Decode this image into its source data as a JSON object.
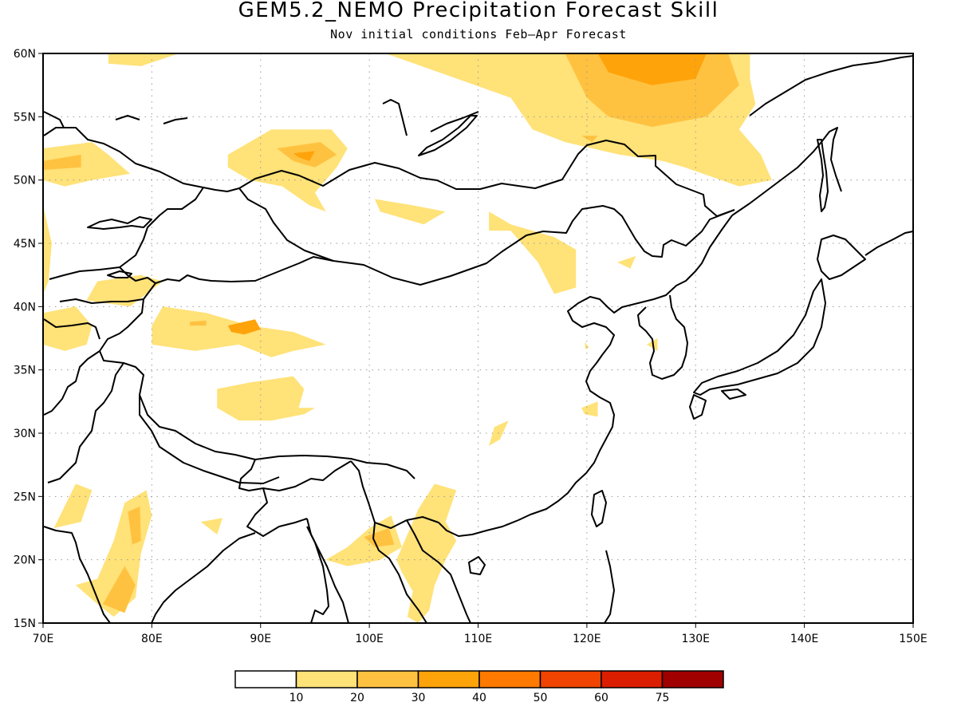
{
  "map": {
    "title": "GEM5.2_NEMO Precipitation Forecast Skill",
    "subtitle": "Nov initial conditions  Feb–Apr Forecast",
    "lon_range": [
      70,
      150
    ],
    "lat_range": [
      15,
      60
    ],
    "lon_ticks": [
      "70E",
      "80E",
      "90E",
      "100E",
      "110E",
      "120E",
      "130E",
      "140E",
      "150E"
    ],
    "lat_ticks": [
      "15N",
      "20N",
      "25N",
      "30N",
      "35N",
      "40N",
      "45N",
      "50N",
      "55N",
      "60N"
    ],
    "grid": "dotted"
  },
  "colorbar": {
    "colors": [
      "#ffffff",
      "#ffe278",
      "#ffc240",
      "#ffa30a",
      "#ff7a00",
      "#f04400",
      "#dc1e00",
      "#a00000"
    ],
    "labels": [
      "10",
      "20",
      "30",
      "40",
      "50",
      "60",
      "75"
    ]
  },
  "skill_regions": [
    {
      "level": 1,
      "points": [
        [
          76,
          60
        ],
        [
          82.5,
          60
        ],
        [
          79,
          59
        ],
        [
          76,
          59.2
        ]
      ]
    },
    {
      "level": 1,
      "points": [
        [
          101.5,
          60
        ],
        [
          135,
          60
        ],
        [
          135,
          58
        ],
        [
          135.5,
          56
        ],
        [
          134,
          54
        ],
        [
          136,
          52
        ],
        [
          137,
          50
        ],
        [
          134,
          49.5
        ],
        [
          129,
          51
        ],
        [
          127,
          51.5
        ],
        [
          123,
          52
        ],
        [
          118,
          53
        ],
        [
          115,
          54
        ],
        [
          113,
          56.5
        ]
      ]
    },
    {
      "level": 2,
      "points": [
        [
          118,
          60
        ],
        [
          133,
          60
        ],
        [
          134,
          57.5
        ],
        [
          131,
          55
        ],
        [
          126,
          54.2
        ],
        [
          122,
          55
        ],
        [
          120,
          56.5
        ]
      ]
    },
    {
      "level": 3,
      "points": [
        [
          121,
          60
        ],
        [
          131,
          60
        ],
        [
          130,
          58
        ],
        [
          126,
          57.5
        ],
        [
          122,
          58.5
        ]
      ]
    },
    {
      "level": 2,
      "points": [
        [
          119.5,
          53.5
        ],
        [
          121,
          53.5
        ],
        [
          120.5,
          53
        ]
      ]
    },
    {
      "level": 1,
      "points": [
        [
          70,
          52.5
        ],
        [
          74.5,
          53
        ],
        [
          76,
          52
        ],
        [
          78,
          50.5
        ],
        [
          74.5,
          50
        ],
        [
          72,
          49.5
        ],
        [
          70,
          50
        ]
      ]
    },
    {
      "level": 2,
      "points": [
        [
          70,
          51.5
        ],
        [
          73.5,
          52
        ],
        [
          73.5,
          51
        ],
        [
          70,
          50.8
        ]
      ]
    },
    {
      "level": 1,
      "points": [
        [
          87,
          52
        ],
        [
          91,
          54
        ],
        [
          96.5,
          54
        ],
        [
          98,
          52.5
        ],
        [
          97,
          51
        ],
        [
          95,
          49
        ],
        [
          96,
          47.5
        ],
        [
          94.5,
          48
        ],
        [
          92,
          49.5
        ],
        [
          89,
          50
        ],
        [
          87,
          51
        ]
      ]
    },
    {
      "level": 2,
      "points": [
        [
          91.5,
          52.5
        ],
        [
          95.5,
          53
        ],
        [
          97,
          52
        ],
        [
          95,
          51
        ],
        [
          93,
          51.5
        ]
      ]
    },
    {
      "level": 3,
      "points": [
        [
          93,
          52.1
        ],
        [
          95,
          52.3
        ],
        [
          94.5,
          51.5
        ],
        [
          93.5,
          51.8
        ]
      ]
    },
    {
      "level": 1,
      "points": [
        [
          100.5,
          48.5
        ],
        [
          104,
          48
        ],
        [
          107,
          47.5
        ],
        [
          105,
          46.5
        ],
        [
          103,
          47
        ],
        [
          101,
          47.5
        ]
      ]
    },
    {
      "level": 1,
      "points": [
        [
          111,
          47.5
        ],
        [
          113,
          46.5
        ],
        [
          117,
          45.5
        ],
        [
          119,
          44.5
        ],
        [
          119,
          41.5
        ],
        [
          117,
          41
        ],
        [
          115.5,
          43.5
        ],
        [
          113,
          46
        ],
        [
          111,
          46
        ]
      ]
    },
    {
      "level": 1,
      "points": [
        [
          70,
          48
        ],
        [
          70.8,
          45
        ],
        [
          70.5,
          42
        ],
        [
          70,
          41
        ]
      ]
    },
    {
      "level": 1,
      "points": [
        [
          75,
          42
        ],
        [
          79,
          42.5
        ],
        [
          81,
          42
        ],
        [
          78,
          40
        ],
        [
          74,
          40.5
        ]
      ]
    },
    {
      "level": 1,
      "points": [
        [
          80,
          38.5
        ],
        [
          81,
          40
        ],
        [
          85,
          39.5
        ],
        [
          89,
          38.5
        ],
        [
          93,
          38
        ],
        [
          96,
          37
        ],
        [
          93,
          36.5
        ],
        [
          91,
          36
        ],
        [
          88,
          37
        ],
        [
          84,
          36.5
        ],
        [
          80,
          37
        ]
      ]
    },
    {
      "level": 2,
      "points": [
        [
          83.5,
          38.8
        ],
        [
          85,
          38.9
        ],
        [
          85,
          38.5
        ],
        [
          83.5,
          38.5
        ]
      ]
    },
    {
      "level": 3,
      "points": [
        [
          87,
          38.5
        ],
        [
          89.5,
          39
        ],
        [
          90,
          38.2
        ],
        [
          88.5,
          37.8
        ],
        [
          87.3,
          38
        ]
      ]
    },
    {
      "level": 1,
      "points": [
        [
          70,
          39.5
        ],
        [
          73,
          40
        ],
        [
          74.5,
          38.5
        ],
        [
          74,
          37
        ],
        [
          72,
          36.5
        ],
        [
          70,
          37
        ]
      ]
    },
    {
      "level": 1,
      "points": [
        [
          86,
          33.5
        ],
        [
          89,
          34
        ],
        [
          93,
          34.5
        ],
        [
          94,
          33.5
        ],
        [
          93.5,
          32
        ],
        [
          95,
          32
        ],
        [
          94,
          31.5
        ],
        [
          91,
          31
        ],
        [
          88,
          31
        ],
        [
          86,
          32
        ]
      ]
    },
    {
      "level": 1,
      "points": [
        [
          102.5,
          20
        ],
        [
          103.5,
          22
        ],
        [
          104.5,
          24
        ],
        [
          106,
          26
        ],
        [
          108,
          25.5
        ],
        [
          107,
          23
        ],
        [
          108,
          21.5
        ],
        [
          107,
          20
        ],
        [
          106,
          18
        ],
        [
          105.5,
          16
        ],
        [
          104.5,
          15
        ],
        [
          103.5,
          15.5
        ],
        [
          104,
          17.5
        ],
        [
          103,
          19
        ]
      ]
    },
    {
      "level": 1,
      "points": [
        [
          96,
          20
        ],
        [
          98,
          21
        ],
        [
          100,
          22.5
        ],
        [
          102,
          23.5
        ],
        [
          103,
          21
        ],
        [
          101,
          20
        ],
        [
          98,
          19.5
        ]
      ]
    },
    {
      "level": 2,
      "points": [
        [
          99.5,
          21.8
        ],
        [
          101.8,
          22.5
        ],
        [
          102.3,
          21.2
        ],
        [
          100.5,
          21
        ]
      ]
    },
    {
      "level": 1,
      "points": [
        [
          73,
          26
        ],
        [
          74.5,
          25.5
        ],
        [
          73.5,
          23
        ],
        [
          71,
          22.5
        ]
      ]
    },
    {
      "level": 1,
      "points": [
        [
          76.5,
          21.5
        ],
        [
          77.5,
          24.5
        ],
        [
          79.5,
          25.5
        ],
        [
          80,
          23.5
        ],
        [
          79,
          20.5
        ],
        [
          78.5,
          17
        ],
        [
          76.5,
          15.5
        ],
        [
          75,
          16.5
        ],
        [
          73,
          18
        ],
        [
          75,
          18.5
        ]
      ]
    },
    {
      "level": 2,
      "points": [
        [
          77.8,
          23.8
        ],
        [
          78.9,
          24.2
        ],
        [
          79,
          21.5
        ],
        [
          78.2,
          21.2
        ]
      ]
    },
    {
      "level": 2,
      "points": [
        [
          75.5,
          16.5
        ],
        [
          77.5,
          19.5
        ],
        [
          78.5,
          18
        ],
        [
          77.5,
          15.8
        ]
      ]
    },
    {
      "level": 1,
      "points": [
        [
          84.5,
          23
        ],
        [
          86.5,
          23.3
        ],
        [
          86,
          22
        ]
      ]
    },
    {
      "level": 1,
      "points": [
        [
          111.5,
          30.5
        ],
        [
          112.8,
          31
        ],
        [
          112,
          29.5
        ],
        [
          111,
          29
        ]
      ]
    },
    {
      "level": 1,
      "points": [
        [
          119.5,
          32
        ],
        [
          121,
          32.5
        ],
        [
          121,
          31.3
        ],
        [
          119.8,
          31.5
        ]
      ]
    },
    {
      "level": 1,
      "points": [
        [
          119.8,
          37.2
        ],
        [
          120.2,
          36.8
        ],
        [
          119.9,
          36.6
        ]
      ]
    },
    {
      "level": 1,
      "points": [
        [
          122.8,
          43.5
        ],
        [
          124.5,
          44
        ],
        [
          124,
          43
        ]
      ]
    },
    {
      "level": 1,
      "points": [
        [
          125.5,
          37
        ],
        [
          126.5,
          37.5
        ],
        [
          126.5,
          36.5
        ]
      ]
    }
  ]
}
